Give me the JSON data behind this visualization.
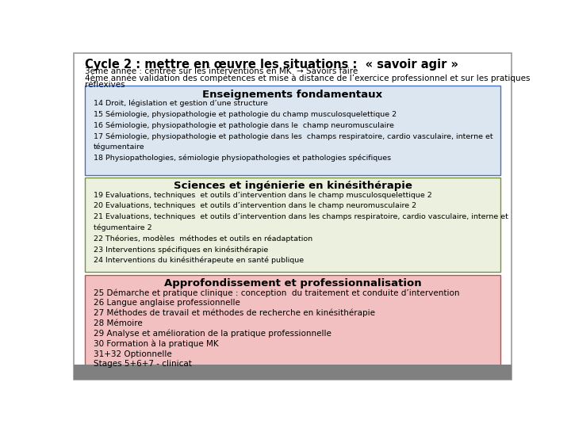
{
  "bg_color": "#ffffff",
  "outer_border_color": "#999999",
  "title_line1": "Cycle 2 : mettre en œuvre les situations :  « savoir agir »",
  "title_line2": "3ème année : centrée sur les interventions en MK  → Savoirs faire",
  "title_line3a": "4ème année validation des compétences et mise à distance de l’exercice professionnel et sur les pratiques",
  "title_line3b": "réflexives",
  "box1_title": "Enseignements fondamentaux",
  "box1_bg": "#dce6f1",
  "box1_border": "#4472c4",
  "box1_items": [
    "14 Droit, législation et gestion d’une structure",
    "15 Sémiologie, physiopathologie et pathologie du champ musculosquelettique 2",
    "16 Sémiologie, physiopathologie et pathologie dans le  champ neuromusculaire",
    "17 Sémiologie, physiopathologie et pathologie dans les  champs respiratoire, cardio vasculaire, interne et",
    "tégumentaire",
    "18 Physiopathologies, sémiologie physiopathologies et pathologies spécifiques"
  ],
  "box2_title": "Sciences et ingénierie en kinésithérapie",
  "box2_bg": "#ebf1de",
  "box2_border": "#76923c",
  "box2_items": [
    "19 Evaluations, techniques  et outils d’intervention dans le champ musculosquelettique 2",
    "20 Evaluations, techniques  et outils d’intervention dans le champ neuromusculaire 2",
    "21 Evaluations, techniques  et outils d’intervention dans les champs respiratoire, cardio vasculaire, interne et",
    "tégumentaire 2",
    "22 Théories, modèles  méthodes et outils en réadaptation",
    "23 Interventions spécifiques en kinésithérapie",
    "24 Interventions du kinésithérapeute en santé publique"
  ],
  "box3_title": "Approfondissement et professionnalisation",
  "box3_bg": "#f2c0c0",
  "box3_border": "#c0504d",
  "box3_items": [
    "25 Démarche et pratique clinique : conception  du traitement et conduite d’intervention",
    "26 Langue anglaise professionnelle",
    "27 Méthodes de travail et méthodes de recherche en kinésithérapie",
    "28 Mémoire",
    "29 Analyse et amélioration de la pratique professionnelle",
    "30 Formation à la pratique MK",
    "31+32 Optionnelle",
    "Stages 5+6+7 - clinicat"
  ],
  "bottom_bar_color": "#808080",
  "bottom_bar_height": 0.045
}
